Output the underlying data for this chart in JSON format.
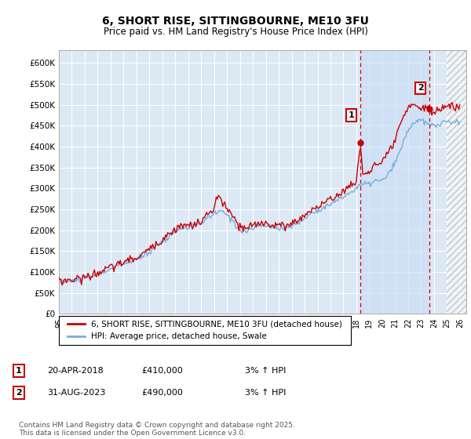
{
  "title": "6, SHORT RISE, SITTINGBOURNE, ME10 3FU",
  "subtitle": "Price paid vs. HM Land Registry's House Price Index (HPI)",
  "ylabel_ticks": [
    "£0",
    "£50K",
    "£100K",
    "£150K",
    "£200K",
    "£250K",
    "£300K",
    "£350K",
    "£400K",
    "£450K",
    "£500K",
    "£550K",
    "£600K"
  ],
  "ytick_values": [
    0,
    50000,
    100000,
    150000,
    200000,
    250000,
    300000,
    350000,
    400000,
    450000,
    500000,
    550000,
    600000
  ],
  "ylim": [
    0,
    630000
  ],
  "xlim_start": 1995.0,
  "xlim_end": 2026.5,
  "xtick_years": [
    1995,
    1996,
    1997,
    1998,
    1999,
    2000,
    2001,
    2002,
    2003,
    2004,
    2005,
    2006,
    2007,
    2008,
    2009,
    2010,
    2011,
    2012,
    2013,
    2014,
    2015,
    2016,
    2017,
    2018,
    2019,
    2020,
    2021,
    2022,
    2023,
    2024,
    2025,
    2026
  ],
  "hpi_color": "#7aaddc",
  "price_color": "#cc0000",
  "background_color": "#ffffff",
  "plot_bg_color": "#dce9f5",
  "grid_color": "#ffffff",
  "annotation_box_color": "#cc0000",
  "hatch_color": "#cccccc",
  "legend_label_red": "6, SHORT RISE, SITTINGBOURNE, ME10 3FU (detached house)",
  "legend_label_blue": "HPI: Average price, detached house, Swale",
  "marker1_year": 2018.3,
  "marker1_value": 410000,
  "marker1_label": "1",
  "marker2_year": 2023.67,
  "marker2_value": 490000,
  "marker2_label": "2",
  "shade_start": 2018.3,
  "shade_end": 2023.67,
  "hatch_start": 2025.0,
  "table_data": [
    [
      "1",
      "20-APR-2018",
      "£410,000",
      "3% ↑ HPI"
    ],
    [
      "2",
      "31-AUG-2023",
      "£490,000",
      "3% ↑ HPI"
    ]
  ],
  "footnote": "Contains HM Land Registry data © Crown copyright and database right 2025.\nThis data is licensed under the Open Government Licence v3.0."
}
